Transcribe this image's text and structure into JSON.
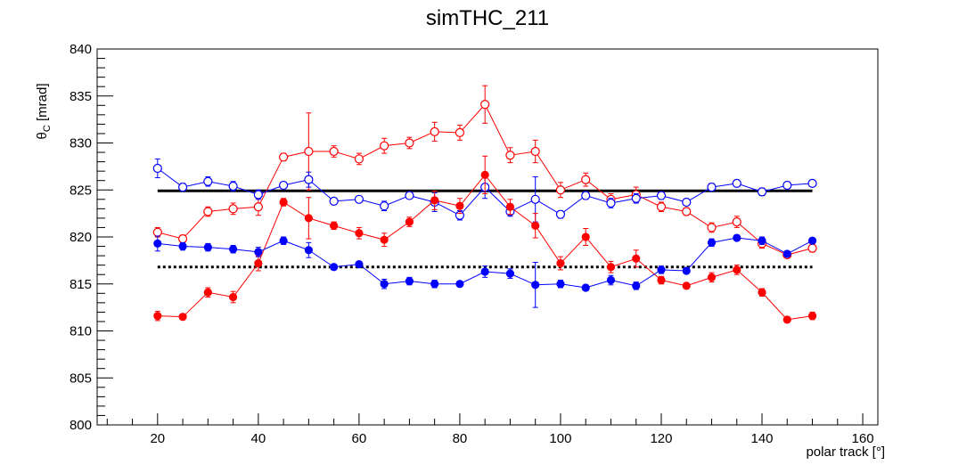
{
  "chart_data": {
    "type": "scatter",
    "title": "simTHC_211",
    "xlabel": "polar track [°]",
    "ylabel_main": "θ",
    "ylabel_sub": "C",
    "ylabel_unit": " [mrad]",
    "xlim": [
      8,
      163
    ],
    "ylim": [
      800,
      840
    ],
    "xticks": [
      20,
      40,
      60,
      80,
      100,
      120,
      140,
      160
    ],
    "yticks": [
      800,
      805,
      810,
      815,
      820,
      825,
      830,
      835,
      840
    ],
    "grid": false,
    "x": [
      20,
      25,
      30,
      35,
      40,
      45,
      50,
      55,
      60,
      65,
      70,
      75,
      80,
      85,
      90,
      95,
      100,
      105,
      110,
      115,
      120,
      125,
      130,
      135,
      140,
      145,
      150
    ],
    "series": [
      {
        "color": "#ff0000",
        "marker": "open-circle",
        "values": [
          820.5,
          819.8,
          822.7,
          823.0,
          823.2,
          828.5,
          829.1,
          829.1,
          828.3,
          829.7,
          830.0,
          831.2,
          831.1,
          834.1,
          828.7,
          829.1,
          825.0,
          826.1,
          824.0,
          824.5,
          823.2,
          822.7,
          821.0,
          821.6,
          819.3,
          818.1,
          818.8
        ],
        "errors": [
          0.5,
          0.4,
          0.5,
          0.6,
          0.9,
          0.4,
          4.1,
          0.6,
          0.6,
          0.8,
          0.6,
          1.0,
          0.8,
          2.0,
          0.8,
          1.2,
          0.8,
          0.7,
          0.6,
          0.8,
          0.5,
          0.4,
          0.5,
          0.6,
          0.5,
          0.3,
          0.4
        ]
      },
      {
        "color": "#0000ff",
        "marker": "open-circle",
        "values": [
          827.3,
          825.3,
          825.9,
          825.4,
          824.5,
          825.5,
          826.1,
          823.8,
          824.0,
          823.3,
          824.4,
          823.7,
          822.3,
          825.3,
          822.7,
          824.0,
          822.4,
          824.4,
          823.6,
          824.1,
          824.4,
          823.7,
          825.3,
          825.7,
          824.8,
          825.5,
          825.7
        ],
        "errors": [
          1.0,
          0.4,
          0.5,
          0.5,
          0.5,
          0.3,
          0.8,
          0.3,
          0.3,
          0.5,
          0.3,
          1.0,
          0.5,
          1.2,
          0.5,
          2.4,
          0.4,
          0.4,
          0.5,
          0.5,
          0.4,
          0.3,
          0.4,
          0.3,
          0.4,
          0.3,
          0.3
        ]
      },
      {
        "color": "#ff0000",
        "marker": "filled-circle",
        "values": [
          811.6,
          811.5,
          814.1,
          813.6,
          817.2,
          823.7,
          822.0,
          821.2,
          820.4,
          819.7,
          821.6,
          823.9,
          823.3,
          826.6,
          823.2,
          821.2,
          817.2,
          820.0,
          816.8,
          817.7,
          815.4,
          814.8,
          815.7,
          816.5,
          814.1,
          811.2,
          811.6
        ],
        "errors": [
          0.5,
          0.3,
          0.5,
          0.6,
          0.8,
          0.4,
          2.2,
          0.4,
          0.6,
          0.7,
          0.5,
          1.0,
          0.8,
          2.0,
          0.8,
          1.3,
          0.7,
          0.9,
          0.6,
          0.9,
          0.4,
          0.3,
          0.5,
          0.5,
          0.4,
          0.2,
          0.4
        ]
      },
      {
        "color": "#0000ff",
        "marker": "filled-circle",
        "values": [
          819.3,
          819.0,
          818.9,
          818.7,
          818.4,
          819.6,
          818.6,
          816.8,
          817.1,
          815.0,
          815.3,
          815.0,
          815.0,
          816.3,
          816.1,
          814.9,
          815.0,
          814.6,
          815.4,
          814.8,
          816.5,
          816.4,
          819.4,
          819.9,
          819.6,
          818.2,
          819.6
        ],
        "errors": [
          0.8,
          0.4,
          0.4,
          0.4,
          0.5,
          0.4,
          0.8,
          0.3,
          0.2,
          0.5,
          0.4,
          0.4,
          0.3,
          0.6,
          0.5,
          2.4,
          0.4,
          0.3,
          0.5,
          0.4,
          0.4,
          0.3,
          0.4,
          0.3,
          0.4,
          0.3,
          0.3
        ]
      }
    ],
    "reference_lines": [
      {
        "style": "solid",
        "y": 824.9,
        "x_range": [
          20,
          150
        ],
        "color": "#000000"
      },
      {
        "style": "dotted",
        "y": 816.8,
        "x_range": [
          20,
          150
        ],
        "color": "#000000"
      }
    ]
  }
}
